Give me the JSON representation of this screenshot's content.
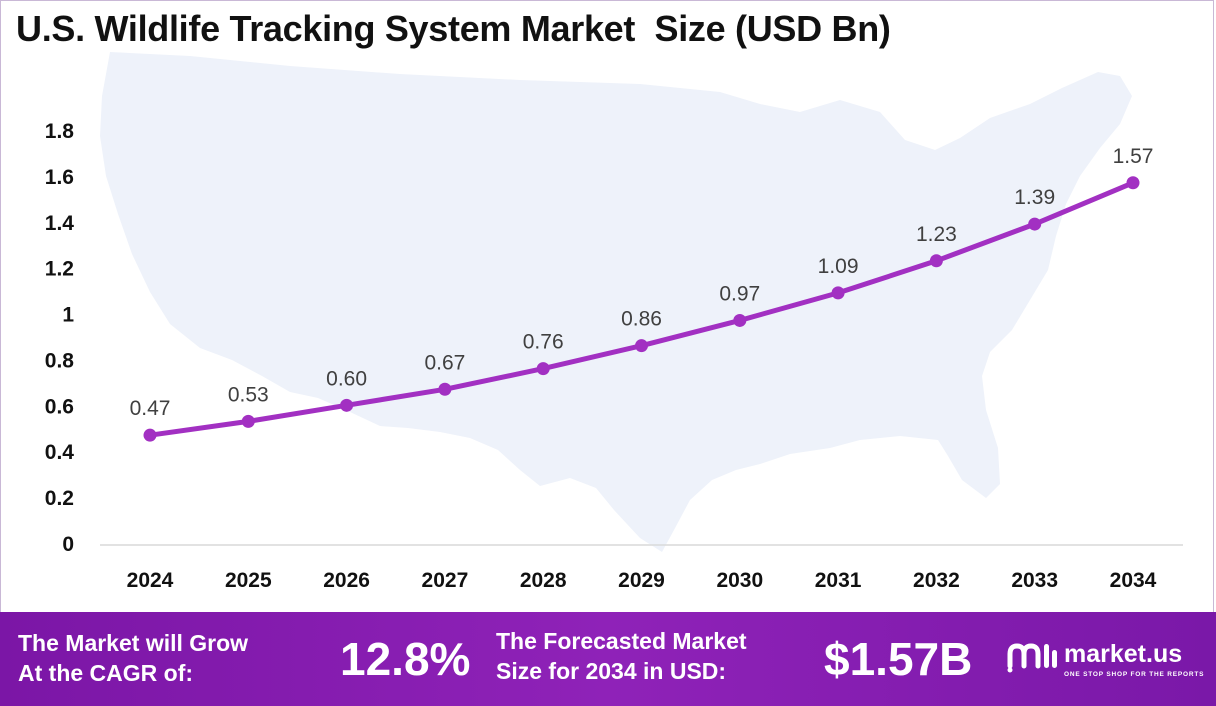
{
  "chart_data": {
    "type": "line",
    "title": "U.S. Wildlife Tracking System Market  Size (USD Bn)",
    "categories": [
      "2024",
      "2025",
      "2026",
      "2027",
      "2028",
      "2029",
      "2030",
      "2031",
      "2032",
      "2033",
      "2034"
    ],
    "series": [
      {
        "values": [
          0.47,
          0.53,
          0.6,
          0.67,
          0.76,
          0.86,
          0.97,
          1.09,
          1.23,
          1.39,
          1.57
        ],
        "labels": [
          "0.47",
          "0.53",
          "0.60",
          "0.67",
          "0.76",
          "0.86",
          "0.97",
          "1.09",
          "1.23",
          "1.39",
          "1.57"
        ]
      }
    ],
    "yticks": [
      "0",
      "0.2",
      "0.4",
      "0.6",
      "0.8",
      "1",
      "1.2",
      "1.4",
      "1.6",
      "1.8"
    ],
    "ylim": [
      0,
      1.8
    ],
    "xlabel": "",
    "ylabel": "",
    "grid": false,
    "line_color": "#a230c2",
    "background": "U.S. map silhouette"
  },
  "footer": {
    "cagr_text_line1": "The Market will Grow",
    "cagr_text_line2": "At the CAGR of:",
    "cagr_value": "12.8%",
    "forecast_text_line1": "The Forecasted Market",
    "forecast_text_line2": "Size for 2034 in USD:",
    "forecast_value": "$1.57B",
    "color": "#8a1fb5"
  },
  "logo": {
    "name": "market.us",
    "tagline": "ONE STOP SHOP FOR THE REPORTS",
    "icon": "market-us-logo-icon"
  }
}
